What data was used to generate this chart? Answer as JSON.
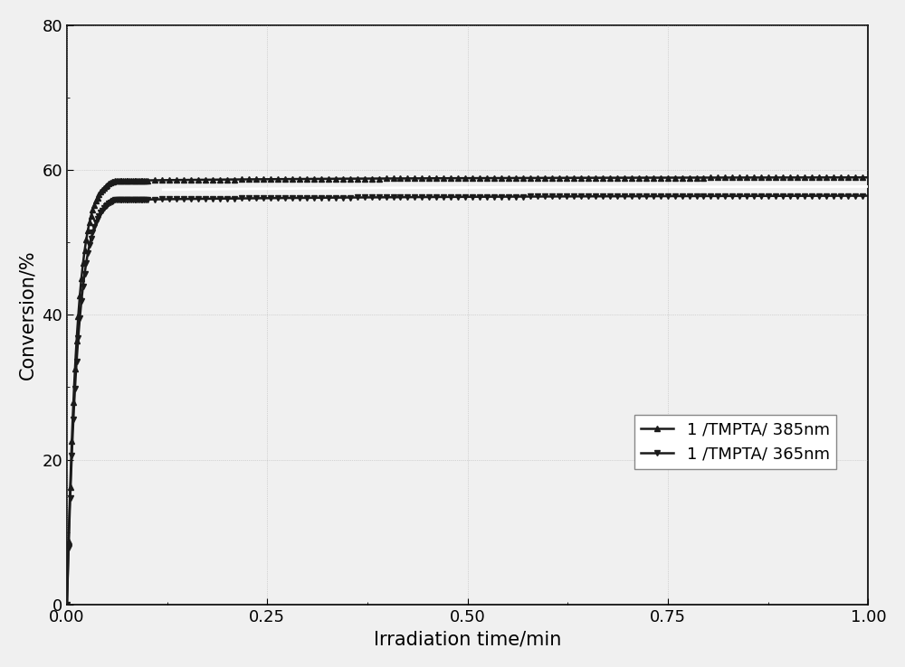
{
  "title": "",
  "xlabel": "Irradiation time/min",
  "ylabel": "Conversion/%",
  "xlim": [
    0,
    1.0
  ],
  "ylim": [
    0,
    80
  ],
  "xticks": [
    0.0,
    0.25,
    0.5,
    0.75,
    1.0
  ],
  "yticks": [
    0,
    20,
    40,
    60,
    80
  ],
  "legend_labels": [
    "1 /TMPTA/ 385nm",
    "1 /TMPTA/ 365nm"
  ],
  "line_color": "#1a1a1a",
  "background_color": "#f0f0f0",
  "plot_bg_color": "#f0f0f0",
  "legend_fontsize": 13,
  "axis_fontsize": 15,
  "tick_fontsize": 13,
  "curve385_plateau": 59.0,
  "curve365_plateau": 56.5,
  "marker_interval": 10,
  "k_fast_385": 80,
  "k_slow_385": 3.0,
  "k_fast_365": 75,
  "k_slow_365": 2.5,
  "transition": 0.06
}
